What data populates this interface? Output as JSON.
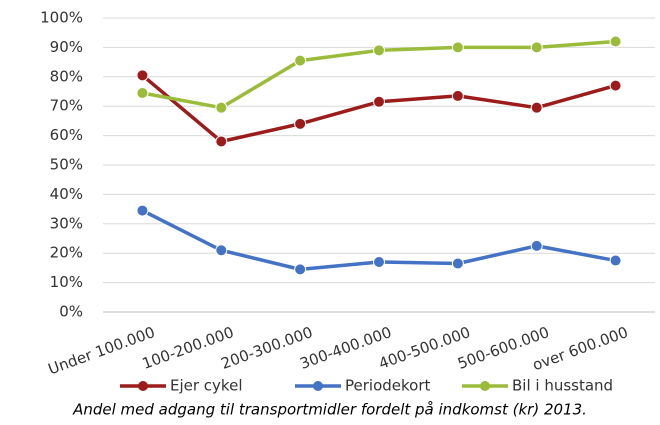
{
  "chart_data": {
    "type": "line",
    "title": "Andel med adgang til transportmidler fordelt på indkomst (kr) 2013.",
    "categories": [
      "Under 100.000",
      "100-200.000",
      "200-300.000",
      "300-400.000",
      "400-500.000",
      "500-600.000",
      "over 600.000"
    ],
    "series": [
      {
        "name": "Ejer cykel",
        "color": "#9c1c1c",
        "values": [
          80.5,
          58,
          64,
          71.5,
          73.5,
          69.5,
          77
        ]
      },
      {
        "name": "Periodekort",
        "color": "#4472c4",
        "values": [
          34.5,
          21,
          14.5,
          17,
          16.5,
          22.5,
          17.5
        ]
      },
      {
        "name": "Bil i husstand",
        "color": "#9bbb3b",
        "values": [
          74.5,
          69.5,
          85.5,
          89,
          90,
          90,
          92
        ]
      }
    ],
    "ylim": [
      0,
      100
    ],
    "yticks": [
      {
        "value": 0,
        "label": "0%"
      },
      {
        "value": 10,
        "label": "10%"
      },
      {
        "value": 20,
        "label": "20%"
      },
      {
        "value": 30,
        "label": "30%"
      },
      {
        "value": 40,
        "label": "40%"
      },
      {
        "value": 50,
        "label": "50%"
      },
      {
        "value": 60,
        "label": "60%"
      },
      {
        "value": 70,
        "label": "70%"
      },
      {
        "value": 80,
        "label": "80%"
      },
      {
        "value": 90,
        "label": "90%"
      },
      {
        "value": 100,
        "label": "100%"
      }
    ],
    "grid": true,
    "legend": "bottom"
  }
}
